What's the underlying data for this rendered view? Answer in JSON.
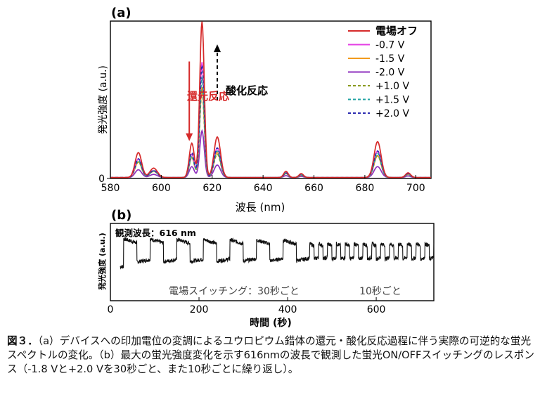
{
  "chart_data": [
    {
      "panel": "(a)",
      "type": "line",
      "xlabel": "波長 (nm)",
      "ylabel": "発光強度 (a.u.)",
      "xlim": [
        580,
        706
      ],
      "ylim": [
        0,
        1.0
      ],
      "xticks": [
        580,
        600,
        620,
        640,
        660,
        680,
        700
      ],
      "yticks": [
        0
      ],
      "peaks_nm": [
        591,
        597,
        612,
        616,
        622,
        649,
        655,
        685,
        697
      ],
      "series": [
        {
          "name": "電場オフ",
          "color": "#d62a2a",
          "style": "solid",
          "peak_values": [
            0.16,
            0.06,
            0.22,
            1.0,
            0.26,
            0.04,
            0.025,
            0.23,
            0.03
          ]
        },
        {
          "name": "-0.7 V",
          "color": "#e43fe4",
          "style": "solid",
          "peak_values": [
            0.12,
            0.045,
            0.15,
            0.74,
            0.19,
            0.03,
            0.02,
            0.17,
            0.025
          ]
        },
        {
          "name": "-1.5 V",
          "color": "#f29a1c",
          "style": "solid",
          "peak_values": [
            0.1,
            0.04,
            0.13,
            0.58,
            0.16,
            0.025,
            0.015,
            0.14,
            0.02
          ]
        },
        {
          "name": "-2.0 V",
          "color": "#8e2fbe",
          "style": "solid",
          "peak_values": [
            0.05,
            0.02,
            0.07,
            0.3,
            0.08,
            0.012,
            0.008,
            0.07,
            0.01
          ]
        },
        {
          "name": "+1.0 V",
          "color": "#8a9a1e",
          "style": "dashed",
          "peak_values": [
            0.1,
            0.04,
            0.13,
            0.56,
            0.15,
            0.025,
            0.015,
            0.14,
            0.02
          ]
        },
        {
          "name": "+1.5 V",
          "color": "#21a3a3",
          "style": "dashed",
          "peak_values": [
            0.11,
            0.042,
            0.14,
            0.64,
            0.17,
            0.028,
            0.017,
            0.155,
            0.022
          ]
        },
        {
          "name": "+2.0 V",
          "color": "#2c2cb0",
          "style": "dashed",
          "peak_values": [
            0.12,
            0.045,
            0.16,
            0.72,
            0.19,
            0.03,
            0.02,
            0.17,
            0.025
          ]
        }
      ],
      "annotations": {
        "reduction": "還元反応",
        "oxidation": "酸化反応"
      },
      "annotation_arrows": {
        "reduction": {
          "x_nm": 611,
          "from": 0.75,
          "to": 0.24
        },
        "oxidation": {
          "x_nm": 622,
          "from": 0.5,
          "to": 0.86
        }
      }
    },
    {
      "panel": "(b)",
      "type": "line",
      "xlabel": "時間 (秒)",
      "ylabel": "発光強度 (a.u.)",
      "xlim": [
        0,
        730
      ],
      "ylim": [
        0,
        1.0
      ],
      "xticks": [
        0,
        200,
        400,
        600
      ],
      "note": "観測波長：616 nm",
      "segments": [
        {
          "label": "電場スイッチング：30秒ごと",
          "from": 30,
          "to": 450,
          "period": 30
        },
        {
          "label": "10秒ごと",
          "from": 450,
          "to": 730,
          "period": 10
        }
      ],
      "levels": {
        "high": 0.8,
        "low": 0.5
      }
    }
  ],
  "caption": {
    "fignum": "図３．",
    "text": "（a）デバイスへの印加電位の変調によるユウロピウム錯体の還元・酸化反応過程に伴う実際の可逆的な蛍光スペクトルの変化。（b）最大の蛍光強度変化を示す616nmの波長で観測した蛍光ON/OFFスイッチングのレスポンス（-1.8 Vと+2.0 Vを30秒ごと、また10秒ごとに繰り返し）。"
  }
}
